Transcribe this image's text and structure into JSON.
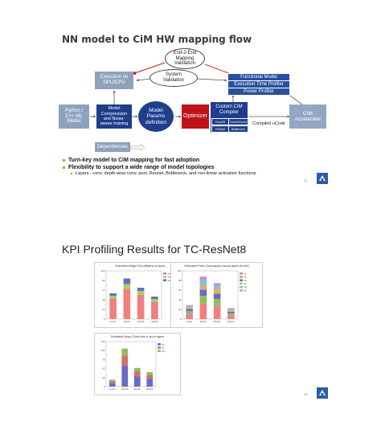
{
  "slide1": {
    "title": "NN model to CiM HW mapping flow",
    "boxes": {
      "e2e": "End-2-End\nMapping\nValidation",
      "sysval": "System\nValidation",
      "gpu": "Execution on\nGPU/CPU",
      "python": "Python /\nC++ ML\nModel",
      "compress": "Model\nCompression\nand Noise-\naware training",
      "params": "Model\nParams\ndefinition",
      "optimizer": "Optimizer",
      "compiler": "Custom CIM\nCompiler",
      "conv2d": "Conv2d",
      "convdw": "Conv2d+pool",
      "fc": "Fullreel",
      "bottleneck": "Bottleneck",
      "functional": "Functional Model",
      "exectime": "Execution Time Profiler",
      "power": "Power Profiler",
      "cim": "CIM\nAccelerator",
      "ucode": "Compiled uCode",
      "deps": "Dependencies"
    },
    "bullets": [
      "Turn-key model to CiM mapping for fast adoption",
      "Flexibility to support a wide range of model topologies"
    ],
    "sub_bullets": [
      "Layers - conv, depth-wise-conv, pool, Resnet, Bottleneck, and non-linear activation functions"
    ],
    "page_number": "11"
  },
  "slide2": {
    "title": "KPI Profiling Results for TC-ResNet8",
    "page_number": "12",
    "charts": [
      {
        "title": "Estimated Weight Size (#Bytes) vs layers",
        "categories": [
          "conv1",
          "block1",
          "block2",
          "block3"
        ],
        "series": [
          {
            "name": "weights b1",
            "values": [
              50,
              75,
              60,
              42
            ],
            "color": "#f08080"
          },
          {
            "name": "weights b2",
            "values": [
              8,
              12,
              10,
              8
            ],
            "color": "#a4d06b"
          },
          {
            "name": "weights b3",
            "values": [
              6,
              14,
              8,
              6
            ],
            "color": "#6a6ac8"
          }
        ],
        "ylim": [
          0,
          120
        ]
      },
      {
        "title": "Estimated Power Consumption across layers (in mW)",
        "categories": [
          "conv1",
          "block1",
          "block2",
          "block3"
        ],
        "series": [
          {
            "name": "s1",
            "values": [
              12,
              35,
              30,
              8
            ],
            "color": "#f08080"
          },
          {
            "name": "s2",
            "values": [
              6,
              18,
              16,
              5
            ],
            "color": "#8fbf5a"
          },
          {
            "name": "s3",
            "values": [
              5,
              14,
              12,
              4
            ],
            "color": "#6a6ac8"
          },
          {
            "name": "s4",
            "values": [
              4,
              10,
              10,
              3
            ],
            "color": "#e0b060"
          },
          {
            "name": "s5",
            "values": [
              3,
              12,
              8,
              3
            ],
            "color": "#7ac6d8"
          },
          {
            "name": "s6",
            "values": [
              2,
              8,
              6,
              2
            ],
            "color": "#c890c8"
          }
        ],
        "ylim": [
          0,
          110
        ]
      },
      {
        "title": "Estimated Delay (Clock time in us) vs layers",
        "categories": [
          "conv1",
          "block1",
          "block2",
          "block3"
        ],
        "series": [
          {
            "name": "d1",
            "values": [
              10,
              60,
              30,
              22
            ],
            "color": "#6a6ac8"
          },
          {
            "name": "d2",
            "values": [
              6,
              30,
              14,
              12
            ],
            "color": "#d07070"
          },
          {
            "name": "d3",
            "values": [
              4,
              20,
              10,
              8
            ],
            "color": "#8fbf5a"
          }
        ],
        "ylim": [
          0,
          130
        ]
      }
    ]
  },
  "colors": {
    "navy": "#203d8a",
    "red": "#c0111a",
    "gray": "#8fa2bd",
    "orange": "#e58c25"
  }
}
